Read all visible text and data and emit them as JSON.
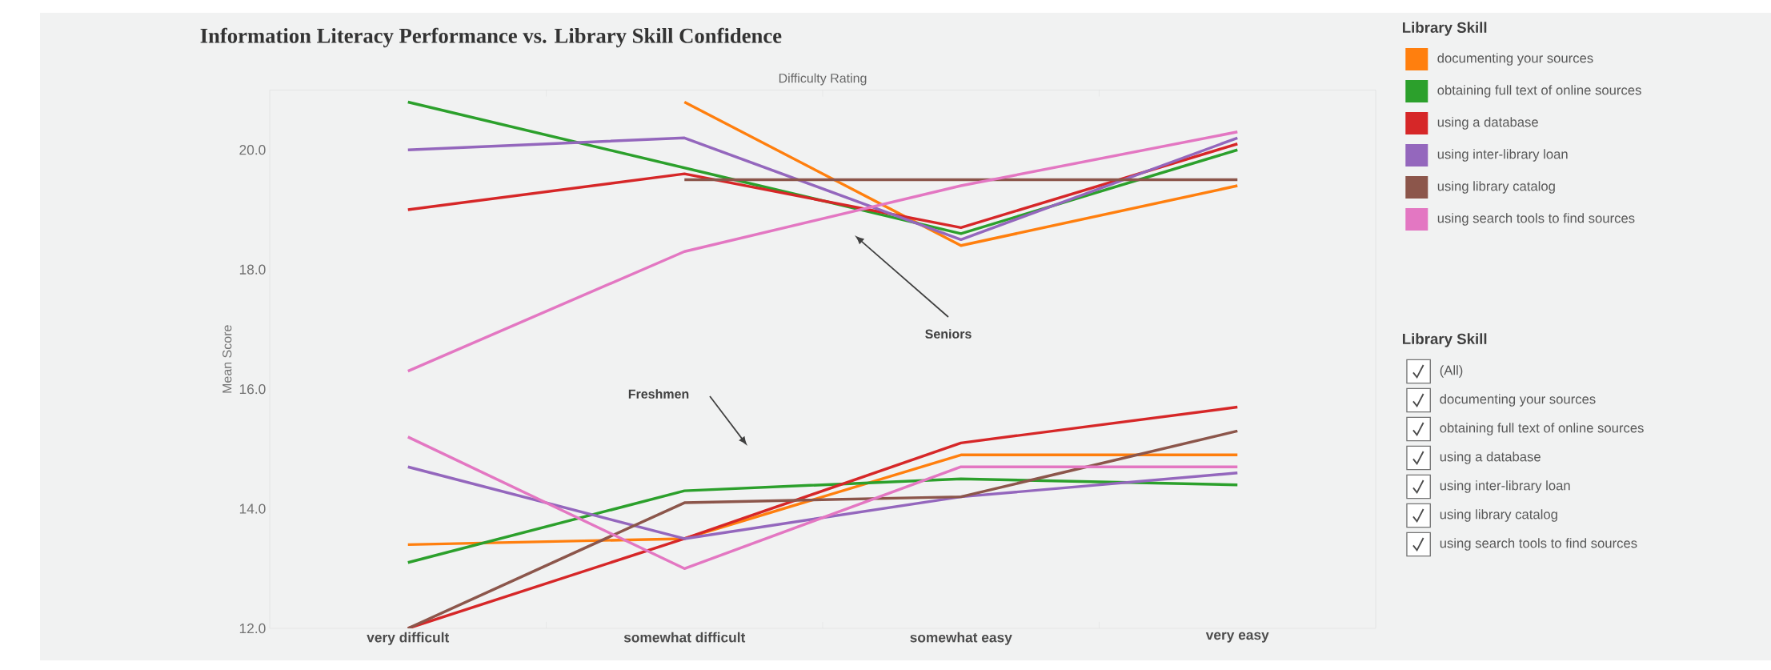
{
  "chart_data": {
    "type": "line",
    "title": "Information Literacy Performance vs. Library Skill Confidence",
    "xlabel": "Difficulty Rating",
    "ylabel": "Mean Score",
    "legend_title": "Library Skill",
    "categories": [
      "very difficult",
      "somewhat difficult",
      "somewhat easy",
      "very easy"
    ],
    "ylim": [
      12,
      21
    ],
    "yticks": [
      {
        "value": 12,
        "label": "12.0"
      },
      {
        "value": 14,
        "label": "14.0"
      },
      {
        "value": 16,
        "label": "16.0"
      },
      {
        "value": 18,
        "label": "18.0"
      },
      {
        "value": 20,
        "label": "20.0"
      }
    ],
    "legend": "right",
    "series": [
      {
        "name": "documenting your sources",
        "color": "#ff7f0e",
        "values": [
          null,
          20.8,
          18.4,
          19.4
        ]
      },
      {
        "name": "obtaining full text of online sources",
        "color": "#2ca02c",
        "values": [
          20.8,
          19.7,
          18.6,
          20.0
        ]
      },
      {
        "name": "using a database",
        "color": "#d62728",
        "values": [
          19.0,
          19.6,
          18.7,
          20.1
        ]
      },
      {
        "name": "using inter-library loan",
        "color": "#9467bd",
        "values": [
          20.0,
          20.2,
          18.5,
          20.2
        ]
      },
      {
        "name": "using library catalog",
        "color": "#8c564b",
        "values": [
          null,
          19.5,
          19.5,
          19.5
        ]
      },
      {
        "name": "using search tools to find sources",
        "color": "#e377c2",
        "values": [
          16.3,
          18.3,
          19.4,
          20.3
        ]
      },
      {
        "color": "#ff7f0e",
        "values": [
          13.4,
          13.5,
          14.9,
          14.9
        ]
      },
      {
        "color": "#2ca02c",
        "values": [
          13.1,
          14.3,
          14.5,
          14.4
        ]
      },
      {
        "color": "#d62728",
        "values": [
          12.0,
          13.5,
          15.1,
          15.7
        ]
      },
      {
        "color": "#9467bd",
        "values": [
          14.7,
          13.5,
          14.2,
          14.6
        ]
      },
      {
        "color": "#8c564b",
        "values": [
          12.0,
          14.1,
          14.2,
          15.3
        ]
      },
      {
        "color": "#e377c2",
        "values": [
          15.2,
          13.0,
          14.7,
          14.7
        ]
      }
    ],
    "annotations": [
      "Seniors",
      "Freshmen",
      "Library Skill",
      "(All)"
    ]
  }
}
